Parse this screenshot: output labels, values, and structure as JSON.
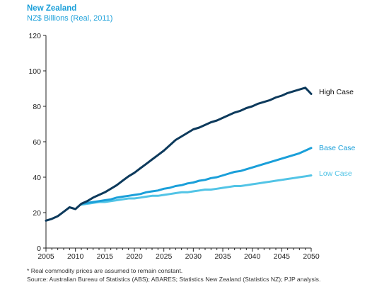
{
  "header": {
    "title": "New Zealand",
    "subtitle": "NZ$ Billions (Real, 2011)"
  },
  "footnotes": {
    "note": "* Real commodity prices are assumed to remain constant.",
    "source": "Source: Australian Bureau of Statistics (ABS); ABARES; Statistics New Zealand (Statistics NZ); PJP analysis."
  },
  "colors": {
    "high": "#0d3a5c",
    "base": "#1a9fd9",
    "low": "#52c4e6",
    "axis": "#222222",
    "title": "#1a9fd9"
  },
  "chart_data": {
    "type": "line",
    "title": "New Zealand",
    "subtitle": "NZ$ Billions (Real, 2011)",
    "xlabel": "",
    "ylabel": "",
    "xlim": [
      2005,
      2050
    ],
    "ylim": [
      0,
      120
    ],
    "xticks": [
      2005,
      2010,
      2015,
      2020,
      2025,
      2030,
      2035,
      2040,
      2045,
      2050
    ],
    "yticks": [
      0,
      20,
      40,
      60,
      80,
      100,
      120
    ],
    "grid": false,
    "legend": "inline labels at right end of lines",
    "series": [
      {
        "name": "High Case",
        "color": "#0d3a5c",
        "x": [
          2005,
          2006,
          2007,
          2008,
          2009,
          2010,
          2011,
          2012,
          2013,
          2014,
          2015,
          2016,
          2017,
          2018,
          2019,
          2020,
          2021,
          2022,
          2023,
          2024,
          2025,
          2026,
          2027,
          2028,
          2029,
          2030,
          2031,
          2032,
          2033,
          2034,
          2035,
          2036,
          2037,
          2038,
          2039,
          2040,
          2041,
          2042,
          2043,
          2044,
          2045,
          2046,
          2047,
          2048,
          2049,
          2050
        ],
        "values": [
          15.5,
          16.5,
          18,
          20.5,
          23,
          22,
          25,
          26.5,
          28.5,
          30,
          31.5,
          33.5,
          35.5,
          38,
          40.5,
          42.5,
          45,
          47.5,
          50,
          52.5,
          55,
          58,
          61,
          63,
          65,
          67,
          68,
          69.5,
          71,
          72,
          73.5,
          75,
          76.5,
          77.5,
          79,
          80,
          81.5,
          82.5,
          83.5,
          85,
          86,
          87.5,
          88.5,
          89.5,
          90.5,
          87
        ]
      },
      {
        "name": "Base Case",
        "color": "#1a9fd9",
        "x": [
          2011,
          2012,
          2013,
          2014,
          2015,
          2016,
          2017,
          2018,
          2019,
          2020,
          2021,
          2022,
          2023,
          2024,
          2025,
          2026,
          2027,
          2028,
          2029,
          2030,
          2031,
          2032,
          2033,
          2034,
          2035,
          2036,
          2037,
          2038,
          2039,
          2040,
          2041,
          2042,
          2043,
          2044,
          2045,
          2046,
          2047,
          2048,
          2049,
          2050
        ],
        "values": [
          25,
          25.5,
          26,
          26.5,
          27,
          27.5,
          28.5,
          29,
          29.5,
          30,
          30.5,
          31.5,
          32,
          32.5,
          33.5,
          34,
          35,
          35.5,
          36.5,
          37,
          38,
          38.5,
          39.5,
          40,
          41,
          42,
          43,
          43.5,
          44.5,
          45.5,
          46.5,
          47.5,
          48.5,
          49.5,
          50.5,
          51.5,
          52.5,
          53.5,
          55,
          56.5
        ]
      },
      {
        "name": "Low Case",
        "color": "#52c4e6",
        "x": [
          2011,
          2012,
          2013,
          2014,
          2015,
          2016,
          2017,
          2018,
          2019,
          2020,
          2021,
          2022,
          2023,
          2024,
          2025,
          2026,
          2027,
          2028,
          2029,
          2030,
          2031,
          2032,
          2033,
          2034,
          2035,
          2036,
          2037,
          2038,
          2039,
          2040,
          2041,
          2042,
          2043,
          2044,
          2045,
          2046,
          2047,
          2048,
          2049,
          2050
        ],
        "values": [
          24.5,
          25,
          25.5,
          26,
          26,
          26.5,
          27,
          27.5,
          28,
          28,
          28.5,
          29,
          29.5,
          29.5,
          30,
          30.5,
          31,
          31.5,
          31.5,
          32,
          32.5,
          33,
          33,
          33.5,
          34,
          34.5,
          35,
          35,
          35.5,
          36,
          36.5,
          37,
          37.5,
          38,
          38.5,
          39,
          39.5,
          40,
          40.5,
          41
        ]
      }
    ]
  }
}
